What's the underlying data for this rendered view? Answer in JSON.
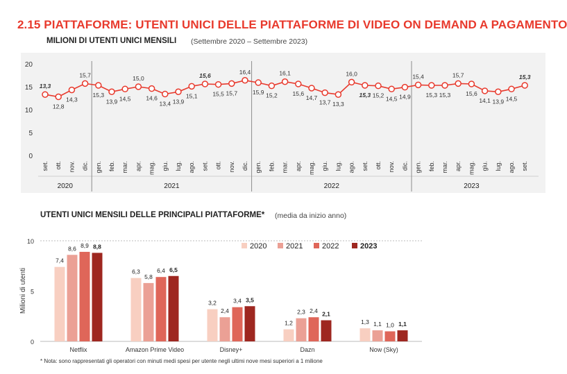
{
  "header": {
    "main_title": "2.15 PIATTAFORME: UTENTI UNICI DELLE PIATTAFORME DI VIDEO ON DEMAND A PAGAMENTO",
    "section1_title": "MILIONI DI UTENTI UNICI MENSILI",
    "section1_subtitle": "(Settembre 2020 – Settembre 2023)",
    "section2_title": "UTENTI UNICI MENSILI DELLE PRINCIPALI PIATTAFORME*",
    "section2_subtitle": "(media da inizio anno)",
    "note": "* Nota: sono rappresentati gli operatori con minuti medi spesi per utente negli ultimi nove mesi superiori a 1 milione"
  },
  "colors": {
    "title_red": "#e8392c",
    "line_red": "#e8392c",
    "s2020": "#f8cfc1",
    "s2021": "#eba095",
    "s2022": "#df6659",
    "s2023": "#9e2720"
  },
  "chart_data": [
    {
      "type": "line",
      "title": "MILIONI DI UTENTI UNICI MENSILI",
      "subtitle": "(Settembre 2020 – Settembre 2023)",
      "ylim": [
        0,
        20
      ],
      "yticks": [
        "0",
        "5",
        "10",
        "15",
        "20"
      ],
      "grid": false,
      "months": [
        "set.",
        "ott.",
        "nov.",
        "dic.",
        "gen.",
        "feb.",
        "mar.",
        "apr.",
        "mag.",
        "giu.",
        "lug.",
        "ago.",
        "set.",
        "ott.",
        "nov.",
        "dic.",
        "gen.",
        "feb.",
        "mar.",
        "apr.",
        "mag.",
        "giu.",
        "lug.",
        "ago.",
        "set.",
        "ott.",
        "nov.",
        "dic.",
        "gen.",
        "feb.",
        "mar.",
        "apr.",
        "mag.",
        "giu.",
        "lug.",
        "ago.",
        "set."
      ],
      "values": [
        13.3,
        12.8,
        14.3,
        15.7,
        15.3,
        13.9,
        14.5,
        15.0,
        14.6,
        13.4,
        13.9,
        15.1,
        15.6,
        15.5,
        15.7,
        16.4,
        15.9,
        15.2,
        16.1,
        15.6,
        14.7,
        13.7,
        13.3,
        16.0,
        15.3,
        15.2,
        14.5,
        14.9,
        15.4,
        15.3,
        15.3,
        15.7,
        15.6,
        14.1,
        13.9,
        14.5,
        15.3
      ],
      "labels": [
        "13,3",
        "12,8",
        "14,3",
        "15,7",
        "15,3",
        "13,9",
        "14,5",
        "15,0",
        "14,6",
        "13,4",
        "13,9",
        "15,1",
        "15,6",
        "15,5",
        "15,7",
        "16,4",
        "15,9",
        "15,2",
        "16,1",
        "15,6",
        "14,7",
        "13,7",
        "13,3",
        "16,0",
        "15,3",
        "15,2",
        "14,5",
        "14,9",
        "15,4",
        "15,3",
        "15,3",
        "15,7",
        "15,6",
        "14,1",
        "13,9",
        "14,5",
        "15,3"
      ],
      "bold_indices": [
        0,
        12,
        24,
        36
      ],
      "years": [
        {
          "label": "2020",
          "from": 0,
          "to": 3
        },
        {
          "label": "2021",
          "from": 4,
          "to": 15
        },
        {
          "label": "2022",
          "from": 16,
          "to": 27
        },
        {
          "label": "2023",
          "from": 28,
          "to": 36
        }
      ]
    },
    {
      "type": "bar",
      "title": "UTENTI UNICI MENSILI DELLE PRINCIPALI PIATTAFORME*",
      "subtitle": "(media da inizio anno)",
      "ylabel": "Milioni di utenti",
      "ylim": [
        0,
        10
      ],
      "yticks": [
        "0",
        "5",
        "10"
      ],
      "legend_position": "top-right",
      "categories": [
        "Netflix",
        "Amazon Prime Video",
        "Disney+",
        "Dazn",
        "Now (Sky)"
      ],
      "series": [
        {
          "name": "2020",
          "values": [
            7.4,
            6.3,
            3.2,
            1.2,
            1.3
          ],
          "labels": [
            "7,4",
            "6,3",
            "3,2",
            "1,2",
            "1,3"
          ]
        },
        {
          "name": "2021",
          "values": [
            8.6,
            5.8,
            2.4,
            2.3,
            1.1
          ],
          "labels": [
            "8,6",
            "5,8",
            "2,4",
            "2,3",
            "1,1"
          ]
        },
        {
          "name": "2022",
          "values": [
            8.9,
            6.4,
            3.4,
            2.4,
            1.0
          ],
          "labels": [
            "8,9",
            "6,4",
            "3,4",
            "2,4",
            "1,0"
          ]
        },
        {
          "name": "2023",
          "values": [
            8.8,
            6.5,
            3.5,
            2.1,
            1.1
          ],
          "labels": [
            "8,8",
            "6,5",
            "3,5",
            "2,1",
            "1,1"
          ]
        }
      ]
    }
  ]
}
